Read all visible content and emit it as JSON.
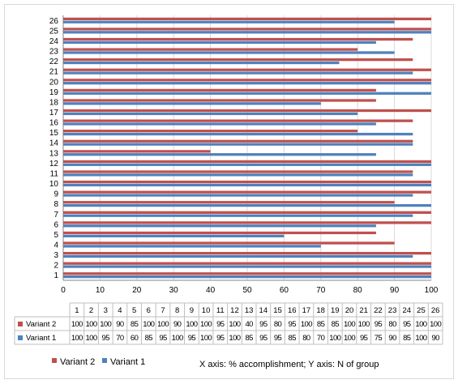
{
  "chart_data": {
    "type": "bar",
    "orientation": "horizontal",
    "categories": [
      "1",
      "2",
      "3",
      "4",
      "5",
      "6",
      "7",
      "8",
      "9",
      "10",
      "11",
      "12",
      "13",
      "14",
      "15",
      "16",
      "17",
      "18",
      "19",
      "20",
      "21",
      "22",
      "23",
      "24",
      "25",
      "26"
    ],
    "series": [
      {
        "name": "Variant 2",
        "color": "#c0504d",
        "values": [
          100,
          100,
          100,
          90,
          85,
          100,
          100,
          90,
          100,
          100,
          95,
          100,
          40,
          95,
          80,
          95,
          100,
          85,
          85,
          100,
          100,
          95,
          80,
          95,
          100,
          100
        ]
      },
      {
        "name": "Variant 1",
        "color": "#4f81bd",
        "values": [
          100,
          100,
          95,
          70,
          60,
          85,
          95,
          100,
          95,
          100,
          95,
          100,
          85,
          95,
          95,
          85,
          80,
          70,
          100,
          100,
          95,
          75,
          90,
          85,
          100,
          90
        ]
      }
    ],
    "xlim": [
      0,
      100
    ],
    "xticks": [
      "0",
      "10",
      "20",
      "30",
      "40",
      "50",
      "60",
      "70",
      "80",
      "90",
      "100"
    ],
    "grid": true,
    "legend_position": "bottom",
    "data_table": true
  },
  "legend": {
    "variant2": "Variant 2",
    "variant1": "Variant 1"
  },
  "footer_note": "X axis:  % accomplishment;     Y axis: N of group"
}
